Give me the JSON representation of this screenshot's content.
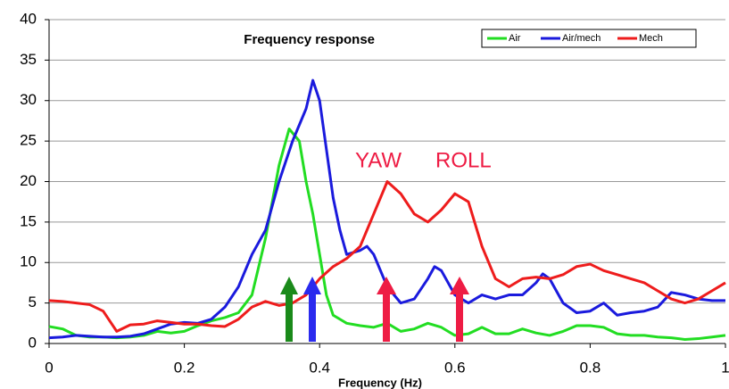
{
  "chart_data": {
    "type": "line",
    "title": "Frequency response",
    "x_label": "Frequency (Hz)",
    "annotations": [
      "YAW",
      "ROLL"
    ],
    "xlim": [
      0,
      1
    ],
    "xticks": [
      0,
      0.2,
      0.4,
      0.6,
      0.8,
      1
    ],
    "ylim": [
      0,
      40
    ],
    "yticks": [
      0,
      5,
      10,
      15,
      20,
      25,
      30,
      35,
      40
    ],
    "grid": true,
    "legend": "top-right",
    "series": [
      {
        "name": "Air",
        "color": "#22dd22",
        "x": [
          0,
          0.02,
          0.04,
          0.06,
          0.08,
          0.1,
          0.12,
          0.14,
          0.16,
          0.18,
          0.2,
          0.22,
          0.24,
          0.26,
          0.28,
          0.3,
          0.32,
          0.34,
          0.355,
          0.37,
          0.38,
          0.39,
          0.4,
          0.41,
          0.42,
          0.44,
          0.46,
          0.48,
          0.5,
          0.52,
          0.54,
          0.56,
          0.58,
          0.6,
          0.62,
          0.64,
          0.66,
          0.68,
          0.7,
          0.72,
          0.74,
          0.76,
          0.78,
          0.8,
          0.82,
          0.84,
          0.86,
          0.88,
          0.9,
          0.92,
          0.94,
          0.96,
          0.98,
          1
        ],
        "values": [
          2.1,
          1.8,
          1.0,
          0.8,
          0.8,
          0.7,
          0.8,
          1.0,
          1.5,
          1.3,
          1.5,
          2.2,
          2.8,
          3.2,
          3.8,
          6,
          13,
          22,
          26.5,
          25,
          20,
          16,
          11,
          6,
          3.5,
          2.5,
          2.2,
          2.0,
          2.5,
          1.5,
          1.8,
          2.5,
          2.0,
          1.0,
          1.2,
          2.0,
          1.2,
          1.2,
          1.8,
          1.3,
          1.0,
          1.5,
          2.2,
          2.2,
          2.0,
          1.2,
          1.0,
          1.0,
          0.8,
          0.7,
          0.5,
          0.6,
          0.8,
          1.0
        ]
      },
      {
        "name": "Air/mech",
        "color": "#1a1add",
        "x": [
          0,
          0.02,
          0.04,
          0.06,
          0.08,
          0.1,
          0.12,
          0.14,
          0.16,
          0.18,
          0.2,
          0.22,
          0.24,
          0.26,
          0.28,
          0.3,
          0.32,
          0.34,
          0.36,
          0.38,
          0.39,
          0.4,
          0.41,
          0.42,
          0.43,
          0.44,
          0.46,
          0.47,
          0.48,
          0.5,
          0.52,
          0.54,
          0.56,
          0.57,
          0.58,
          0.6,
          0.62,
          0.64,
          0.66,
          0.68,
          0.7,
          0.72,
          0.73,
          0.74,
          0.76,
          0.78,
          0.8,
          0.82,
          0.84,
          0.86,
          0.88,
          0.9,
          0.92,
          0.94,
          0.96,
          0.98,
          1
        ],
        "values": [
          0.7,
          0.8,
          1.0,
          0.9,
          0.8,
          0.8,
          0.9,
          1.2,
          1.8,
          2.4,
          2.6,
          2.5,
          3,
          4.5,
          7,
          11,
          14,
          20,
          25,
          29,
          32.5,
          30,
          24,
          18,
          14,
          11,
          11.5,
          12,
          11,
          7,
          5,
          5.5,
          8,
          9.5,
          9,
          6,
          5,
          6,
          5.5,
          6,
          6,
          7.5,
          8.6,
          8,
          5,
          3.8,
          4,
          5,
          3.5,
          3.8,
          4,
          4.5,
          6.3,
          6,
          5.5,
          5.3,
          5.3
        ]
      },
      {
        "name": "Mech",
        "color": "#ee1c1c",
        "x": [
          0,
          0.02,
          0.04,
          0.06,
          0.08,
          0.1,
          0.12,
          0.14,
          0.16,
          0.18,
          0.2,
          0.22,
          0.24,
          0.26,
          0.28,
          0.3,
          0.32,
          0.34,
          0.36,
          0.38,
          0.4,
          0.42,
          0.44,
          0.46,
          0.48,
          0.5,
          0.52,
          0.54,
          0.56,
          0.58,
          0.6,
          0.62,
          0.64,
          0.66,
          0.68,
          0.7,
          0.72,
          0.74,
          0.76,
          0.78,
          0.8,
          0.82,
          0.84,
          0.86,
          0.88,
          0.9,
          0.92,
          0.94,
          0.96,
          0.98,
          1
        ],
        "values": [
          5.3,
          5.2,
          5.0,
          4.8,
          4,
          1.5,
          2.3,
          2.4,
          2.8,
          2.6,
          2.4,
          2.4,
          2.2,
          2.1,
          3,
          4.5,
          5.2,
          4.7,
          5,
          6,
          8,
          9.5,
          10.5,
          12,
          16,
          20,
          18.5,
          16,
          15,
          16.5,
          18.5,
          17.5,
          12,
          8,
          7,
          8,
          8.2,
          8,
          8.5,
          9.5,
          9.8,
          9,
          8.5,
          8,
          7.5,
          6.5,
          5.5,
          5,
          5.5,
          6.5,
          7.5
        ]
      }
    ]
  }
}
